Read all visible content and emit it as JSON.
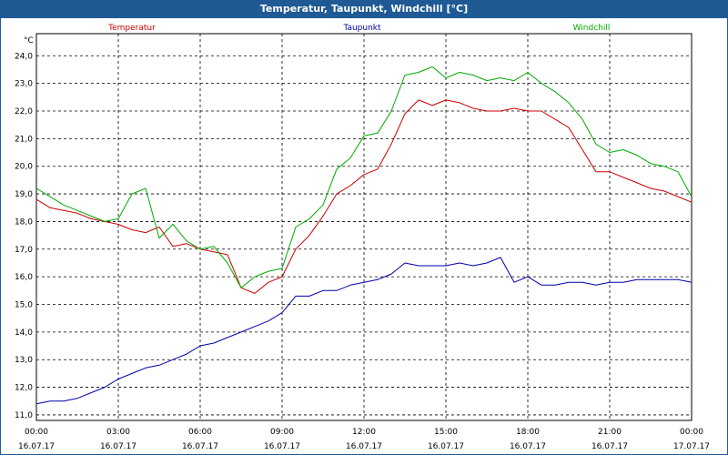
{
  "window": {
    "title": "Temperatur, Taupunkt, Windchill [°C]"
  },
  "chart_data": {
    "type": "line",
    "title": "Temperatur, Taupunkt, Windchill [°C]",
    "ylabel": "°C",
    "ylim": [
      10.8,
      24.8
    ],
    "xlim": [
      0,
      24
    ],
    "grid": true,
    "yticks": [
      "11,0",
      "12,0",
      "13,0",
      "14,0",
      "15,0",
      "16,0",
      "17,0",
      "18,0",
      "19,0",
      "20,0",
      "21,0",
      "22,0",
      "23,0",
      "24,0"
    ],
    "xticks": [
      {
        "time": "00:00",
        "date": "16.07.17"
      },
      {
        "time": "03:00",
        "date": "16.07.17"
      },
      {
        "time": "06:00",
        "date": "16.07.17"
      },
      {
        "time": "09:00",
        "date": "16.07.17"
      },
      {
        "time": "12:00",
        "date": "16.07.17"
      },
      {
        "time": "15:00",
        "date": "16.07.17"
      },
      {
        "time": "18:00",
        "date": "16.07.17"
      },
      {
        "time": "21:00",
        "date": "16.07.17"
      },
      {
        "time": "00:00",
        "date": "17.07.17"
      }
    ],
    "x": [
      0,
      0.5,
      1,
      1.5,
      2,
      2.5,
      3,
      3.5,
      4,
      4.5,
      5,
      5.5,
      6,
      6.5,
      7,
      7.5,
      8,
      8.5,
      9,
      9.5,
      10,
      10.5,
      11,
      11.5,
      12,
      12.5,
      13,
      13.5,
      14,
      14.5,
      15,
      15.5,
      16,
      16.5,
      17,
      17.5,
      18,
      18.5,
      19,
      19.5,
      20,
      20.5,
      21,
      21.5,
      22,
      22.5,
      23,
      23.5,
      24
    ],
    "series": [
      {
        "name": "Temperatur",
        "color": "#cc0000",
        "values": [
          18.8,
          18.5,
          18.4,
          18.3,
          18.1,
          18.0,
          17.9,
          17.7,
          17.6,
          17.8,
          17.1,
          17.2,
          17.0,
          16.9,
          16.8,
          15.6,
          15.4,
          15.8,
          16.0,
          17.0,
          17.5,
          18.2,
          19.0,
          19.3,
          19.7,
          19.9,
          20.8,
          21.9,
          22.4,
          22.2,
          22.4,
          22.3,
          22.1,
          22.0,
          22.0,
          22.1,
          22.0,
          22.0,
          21.7,
          21.4,
          20.6,
          19.8,
          19.8,
          19.6,
          19.4,
          19.2,
          19.1,
          18.9,
          18.7
        ]
      },
      {
        "name": "Taupunkt",
        "color": "#0000aa",
        "values": [
          11.4,
          11.5,
          11.5,
          11.6,
          11.8,
          12.0,
          12.3,
          12.5,
          12.7,
          12.8,
          13.0,
          13.2,
          13.5,
          13.6,
          13.8,
          14.0,
          14.2,
          14.4,
          14.7,
          15.3,
          15.3,
          15.5,
          15.5,
          15.7,
          15.8,
          15.9,
          16.1,
          16.5,
          16.4,
          16.4,
          16.4,
          16.5,
          16.4,
          16.5,
          16.7,
          15.8,
          16.0,
          15.7,
          15.7,
          15.8,
          15.8,
          15.7,
          15.8,
          15.8,
          15.9,
          15.9,
          15.9,
          15.9,
          15.8
        ]
      },
      {
        "name": "Windchill",
        "color": "#00aa00",
        "values": [
          19.2,
          18.9,
          18.6,
          18.4,
          18.2,
          18.0,
          18.1,
          19.0,
          19.2,
          17.4,
          17.9,
          17.3,
          17.0,
          17.1,
          16.5,
          15.6,
          16.0,
          16.2,
          16.3,
          17.8,
          18.1,
          18.6,
          19.9,
          20.3,
          21.1,
          21.2,
          22.0,
          23.3,
          23.4,
          23.6,
          23.2,
          23.4,
          23.3,
          23.1,
          23.2,
          23.1,
          23.4,
          23.0,
          22.7,
          22.3,
          21.7,
          20.8,
          20.5,
          20.6,
          20.4,
          20.1,
          20.0,
          19.8,
          18.9
        ]
      }
    ]
  }
}
